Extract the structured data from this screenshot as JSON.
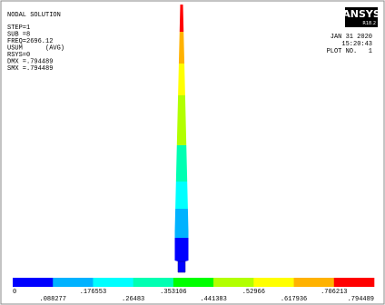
{
  "header": {
    "title": "NODAL SOLUTION",
    "lines": [
      "STEP=1",
      "SUB =8",
      "FREQ=2696.12",
      "USUM      (AVG)",
      "RSYS=0",
      "DMX =.794489",
      "SMX =.794489"
    ]
  },
  "logo": {
    "name": "ANSYS",
    "version": "R18.2"
  },
  "info": {
    "date": "JAN 31 2020",
    "time": "15:20:43",
    "plot": "PLOT NO.   1"
  },
  "legend": {
    "labels": [
      "0",
      ".088277",
      ".176553",
      ".26483",
      ".353106",
      ".441383",
      ".52966",
      ".617936",
      ".706213",
      ".794489"
    ],
    "colors": [
      "#0000ff",
      "#00b2ff",
      "#00ffff",
      "#00ffb2",
      "#00ff00",
      "#b2ff00",
      "#ffff00",
      "#ffb200",
      "#ff0000"
    ]
  }
}
